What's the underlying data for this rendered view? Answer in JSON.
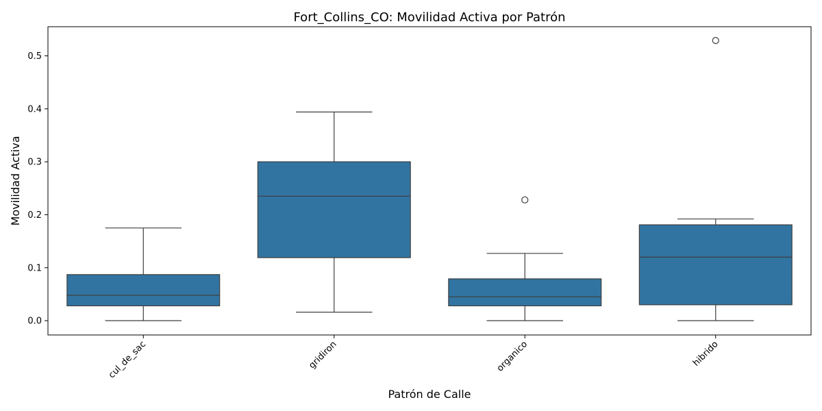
{
  "chart_data": {
    "type": "box",
    "title": "Fort_Collins_CO: Movilidad Activa por Patrón",
    "xlabel": "Patrón de Calle",
    "ylabel": "Movilidad Activa",
    "ylim": [
      -0.027,
      0.555
    ],
    "yticks": [
      0.0,
      0.1,
      0.2,
      0.3,
      0.4,
      0.5
    ],
    "ytick_labels": [
      "0.0",
      "0.1",
      "0.2",
      "0.3",
      "0.4",
      "0.5"
    ],
    "categories": [
      "cul_de_sac",
      "gridiron",
      "organico",
      "hibrido"
    ],
    "boxes": [
      {
        "whisker_low": 0.0,
        "q1": 0.028,
        "median": 0.048,
        "q3": 0.087,
        "whisker_high": 0.175,
        "outliers": []
      },
      {
        "whisker_low": 0.016,
        "q1": 0.119,
        "median": 0.235,
        "q3": 0.3,
        "whisker_high": 0.394,
        "outliers": []
      },
      {
        "whisker_low": 0.0,
        "q1": 0.028,
        "median": 0.045,
        "q3": 0.079,
        "whisker_high": 0.127,
        "outliers": [
          0.228
        ]
      },
      {
        "whisker_low": 0.0,
        "q1": 0.03,
        "median": 0.12,
        "q3": 0.181,
        "whisker_high": 0.192,
        "outliers": [
          0.529
        ]
      }
    ],
    "color": "#3274a1",
    "line_color": "#3d3d3d",
    "grid": false,
    "legend": "none"
  }
}
